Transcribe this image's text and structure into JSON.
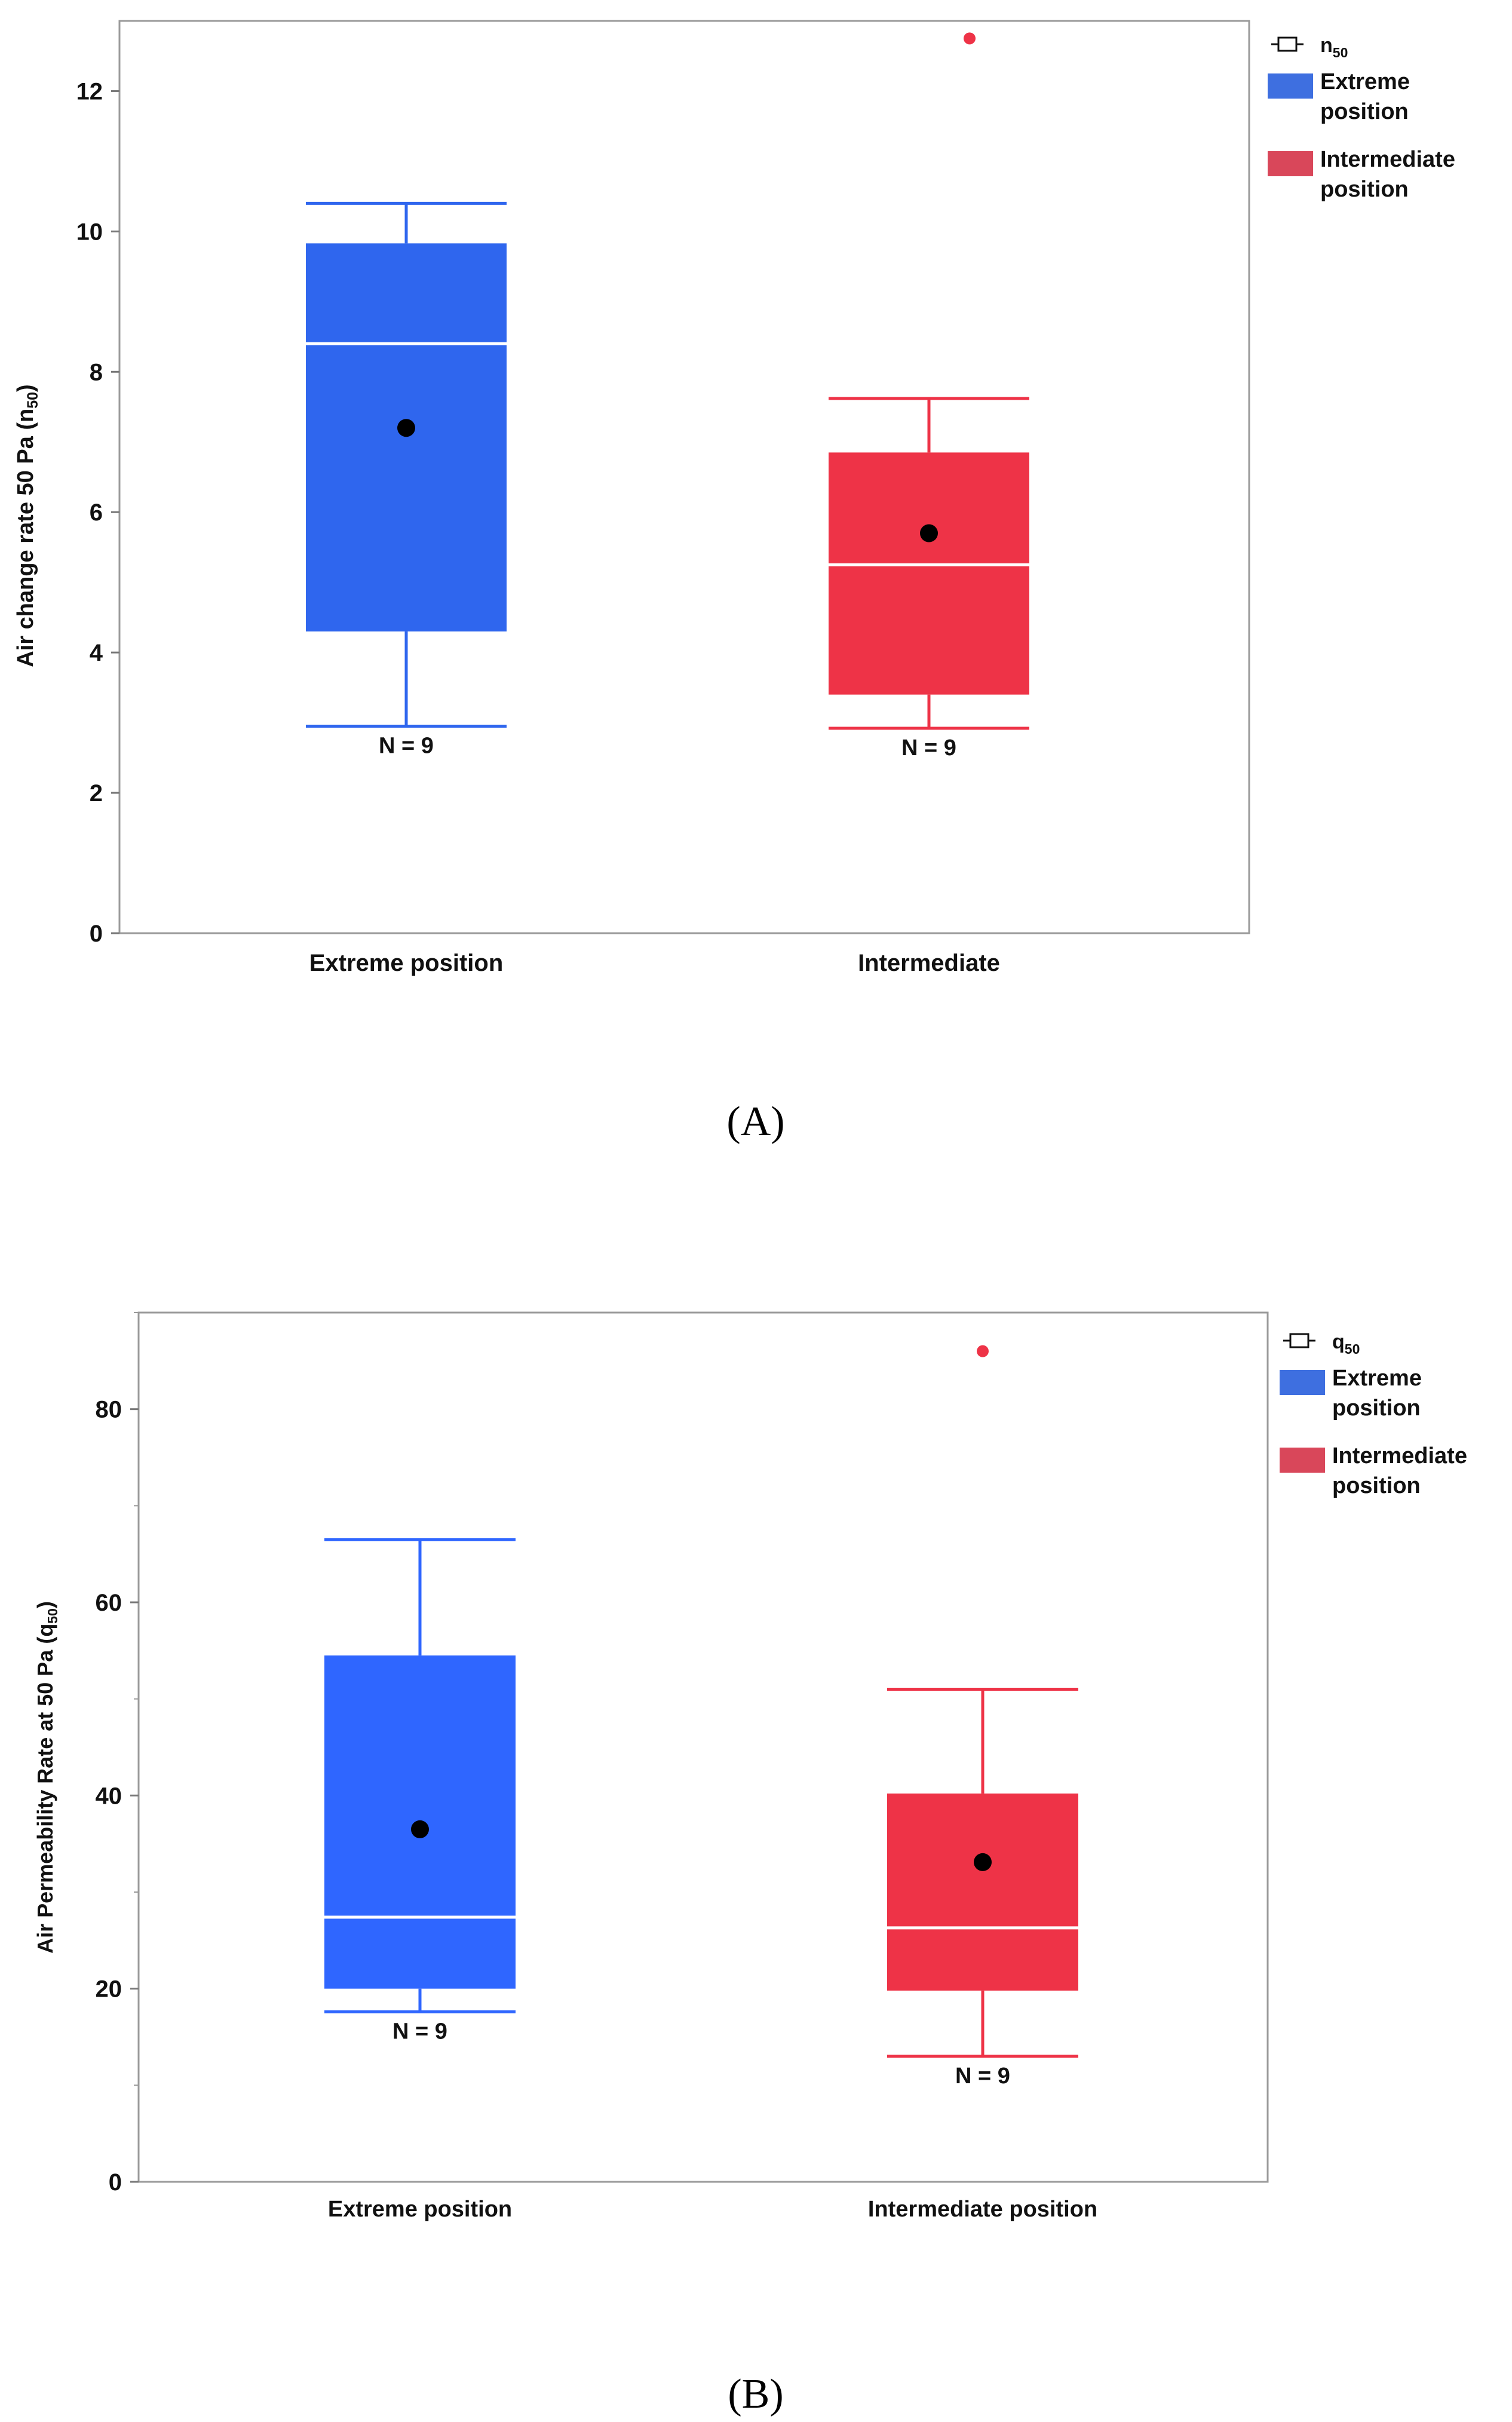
{
  "figure": {
    "panel_a_label": "(A)",
    "panel_b_label": "(B)"
  },
  "chart_data": [
    {
      "type": "box",
      "panel": "A",
      "ylabel": "Air change rate 50 Pa (n",
      "ylabel_sub": "50",
      "ylabel_close": ")",
      "ylim": [
        0,
        13
      ],
      "yticks": [
        0,
        2,
        4,
        6,
        8,
        10,
        12
      ],
      "categories": [
        "Extreme position",
        "Intermediate"
      ],
      "legend": {
        "symbol_label": "n",
        "symbol_sub": "50",
        "entries": [
          {
            "line1": "Extreme",
            "line2": "position",
            "color": "#3E6FE0"
          },
          {
            "line1": "Intermediate",
            "line2": "position",
            "color": "#D9475A"
          }
        ]
      },
      "series": [
        {
          "name": "Extreme position",
          "color": "#2F66EE",
          "min": 2.95,
          "q1": 4.3,
          "median": 8.4,
          "q3": 9.83,
          "max": 10.4,
          "mean": 7.2,
          "outliers": [],
          "n_label": "N = 9"
        },
        {
          "name": "Intermediate",
          "color": "#EE3347",
          "min": 2.92,
          "q1": 3.4,
          "median": 5.25,
          "q3": 6.85,
          "max": 7.62,
          "mean": 5.7,
          "outliers": [
            12.75
          ],
          "n_label": "N = 9"
        }
      ]
    },
    {
      "type": "box",
      "panel": "B",
      "ylabel": "Air Permeability Rate at 50 Pa (q",
      "ylabel_sub": "50",
      "ylabel_close": ")",
      "ylim": [
        0,
        90
      ],
      "yticks": [
        0,
        20,
        40,
        60,
        80
      ],
      "yminor": [
        10,
        30,
        50,
        70,
        90
      ],
      "categories": [
        "Extreme position",
        "Intermediate position"
      ],
      "legend": {
        "symbol_label": "q",
        "symbol_sub": "50",
        "entries": [
          {
            "line1": "Extreme",
            "line2": "position",
            "color": "#3E6FE0"
          },
          {
            "line1": "Intermediate",
            "line2": "position",
            "color": "#D9475A"
          }
        ]
      },
      "series": [
        {
          "name": "Extreme position",
          "color": "#2F66FF",
          "min": 17.6,
          "q1": 20.0,
          "median": 27.4,
          "q3": 54.5,
          "max": 66.5,
          "mean": 36.5,
          "outliers": [],
          "n_label": "N = 9"
        },
        {
          "name": "Intermediate position",
          "color": "#EE3347",
          "min": 13.0,
          "q1": 19.8,
          "median": 26.3,
          "q3": 40.2,
          "max": 51.0,
          "mean": 33.1,
          "outliers": [
            86.0
          ],
          "n_label": "N = 9"
        }
      ]
    }
  ]
}
